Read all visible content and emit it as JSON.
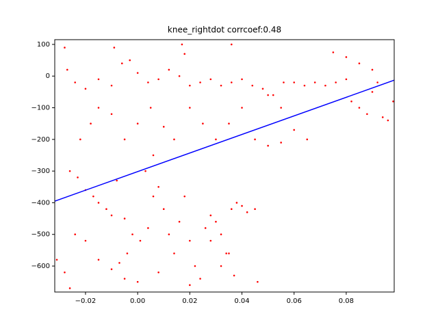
{
  "chart_data": {
    "type": "scatter",
    "title": "knee_rightdot corrcoef:0.48",
    "xlim": [
      -0.0318,
      0.0984
    ],
    "ylim": [
      -682,
      115
    ],
    "xticks": [
      {
        "value": -0.02,
        "label": "−0.02"
      },
      {
        "value": 0,
        "label": "0.00"
      },
      {
        "value": 0.02,
        "label": "0.02"
      },
      {
        "value": 0.04,
        "label": "0.04"
      },
      {
        "value": 0.06,
        "label": "0.06"
      },
      {
        "value": 0.08,
        "label": "0.08"
      }
    ],
    "yticks": [
      {
        "value": -600,
        "label": "−600"
      },
      {
        "value": -500,
        "label": "−500"
      },
      {
        "value": -400,
        "label": "−400"
      },
      {
        "value": -300,
        "label": "−300"
      },
      {
        "value": -200,
        "label": "−200"
      },
      {
        "value": -100,
        "label": "−100"
      },
      0,
      100
    ],
    "series": [
      {
        "color": "#ff0000",
        "kind": "scatter",
        "x": [
          -0.027,
          -0.024,
          -0.02,
          -0.015,
          -0.01,
          -0.006,
          -0.003,
          0,
          0.004,
          0.008,
          0.012,
          0.016,
          0.02,
          0.024,
          0.028,
          0.032,
          0.036,
          0.04,
          0.044,
          0.048,
          0.052,
          0.056,
          0.06,
          0.064,
          0.068,
          0.072,
          0.076,
          0.08,
          0.082,
          0.085,
          0.088,
          0.09,
          0.092,
          0.094,
          0.096,
          0.098,
          0.075,
          0.08,
          0.085,
          0.09,
          0.065,
          0.06,
          0.055,
          0.05,
          -0.022,
          -0.018,
          -0.015,
          -0.01,
          -0.005,
          0,
          0.005,
          0.01,
          0.014,
          0.02,
          0.025,
          0.03,
          0.035,
          0.04,
          0.045,
          0.05,
          0.055,
          0.003,
          0.006,
          0.018,
          0.017,
          -0.009,
          -0.028,
          0.036,
          -0.026,
          -0.023,
          -0.02,
          -0.017,
          -0.015,
          -0.012,
          -0.01,
          -0.008,
          -0.005,
          -0.002,
          0.001,
          0.004,
          0.006,
          0.008,
          0.01,
          0.012,
          0.014,
          0.016,
          0.018,
          0.02,
          0.022,
          0.024,
          0.026,
          0.028,
          0.03,
          0.032,
          0.034,
          0.036,
          0.038,
          0.04,
          0.042,
          0.045,
          0.037,
          0.032,
          0.02,
          0.008,
          0,
          -0.005,
          -0.01,
          -0.015,
          -0.02,
          -0.024,
          -0.028,
          -0.031,
          -0.026,
          0.046,
          0.035,
          0.028,
          -0.004,
          -0.007
        ],
        "y": [
          20,
          -20,
          -40,
          -10,
          -30,
          40,
          50,
          10,
          -20,
          -10,
          20,
          0,
          -30,
          -20,
          -10,
          -30,
          -20,
          -10,
          -30,
          -40,
          -60,
          -20,
          -20,
          -30,
          -20,
          -30,
          -20,
          -10,
          -80,
          -100,
          -120,
          -50,
          -20,
          -130,
          -140,
          -80,
          75,
          60,
          40,
          20,
          -200,
          -170,
          -100,
          -60,
          -200,
          -150,
          -100,
          -120,
          -200,
          -150,
          -100,
          -160,
          -200,
          -100,
          -150,
          -200,
          -150,
          -100,
          -200,
          -220,
          -210,
          -300,
          -250,
          70,
          100,
          90,
          90,
          100,
          -300,
          -320,
          -360,
          -380,
          -400,
          -420,
          -440,
          -330,
          -450,
          -500,
          -520,
          -480,
          -380,
          -350,
          -420,
          -500,
          -560,
          -460,
          -380,
          -520,
          -600,
          -640,
          -480,
          -440,
          -460,
          -500,
          -560,
          -420,
          -400,
          -410,
          -430,
          -420,
          -630,
          -600,
          -660,
          -620,
          -650,
          -640,
          -610,
          -580,
          -520,
          -500,
          -620,
          -580,
          -670,
          -650,
          -560,
          -520,
          -560,
          -590
        ]
      },
      {
        "color": "#0000ff",
        "kind": "line",
        "x": [
          -0.0318,
          0.0984
        ],
        "y": [
          -395,
          -13
        ]
      }
    ]
  }
}
